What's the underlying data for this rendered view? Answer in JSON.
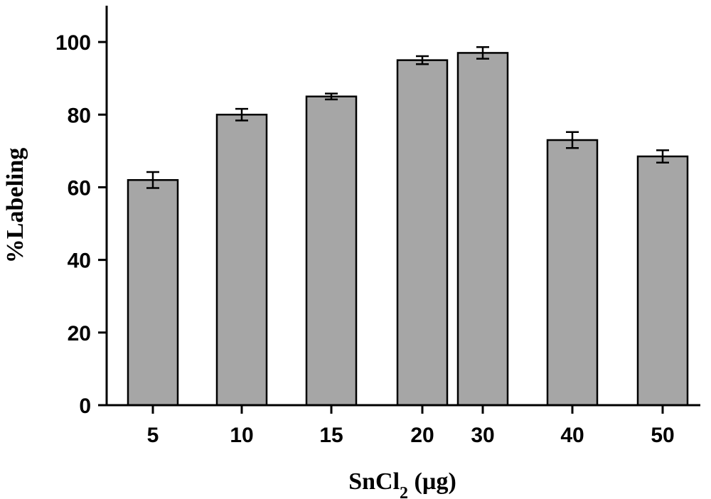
{
  "chart_data": {
    "type": "bar",
    "categories": [
      "5",
      "10",
      "15",
      "20",
      "30",
      "40",
      "50"
    ],
    "values": [
      62,
      80,
      85,
      95,
      97,
      73,
      68.5
    ],
    "errors": [
      2.2,
      1.6,
      0.8,
      1.1,
      1.6,
      2.2,
      1.7
    ],
    "xlabel": {
      "main": "SnCl",
      "sub": "2",
      "unit": " (µg)"
    },
    "ylabel": "%Labeling",
    "ylim": [
      0,
      110
    ],
    "yticks": [
      0,
      20,
      40,
      60,
      80,
      100
    ],
    "grid": false,
    "bar_color": "#a6a6a6",
    "bar_edge_color": "#000000"
  }
}
